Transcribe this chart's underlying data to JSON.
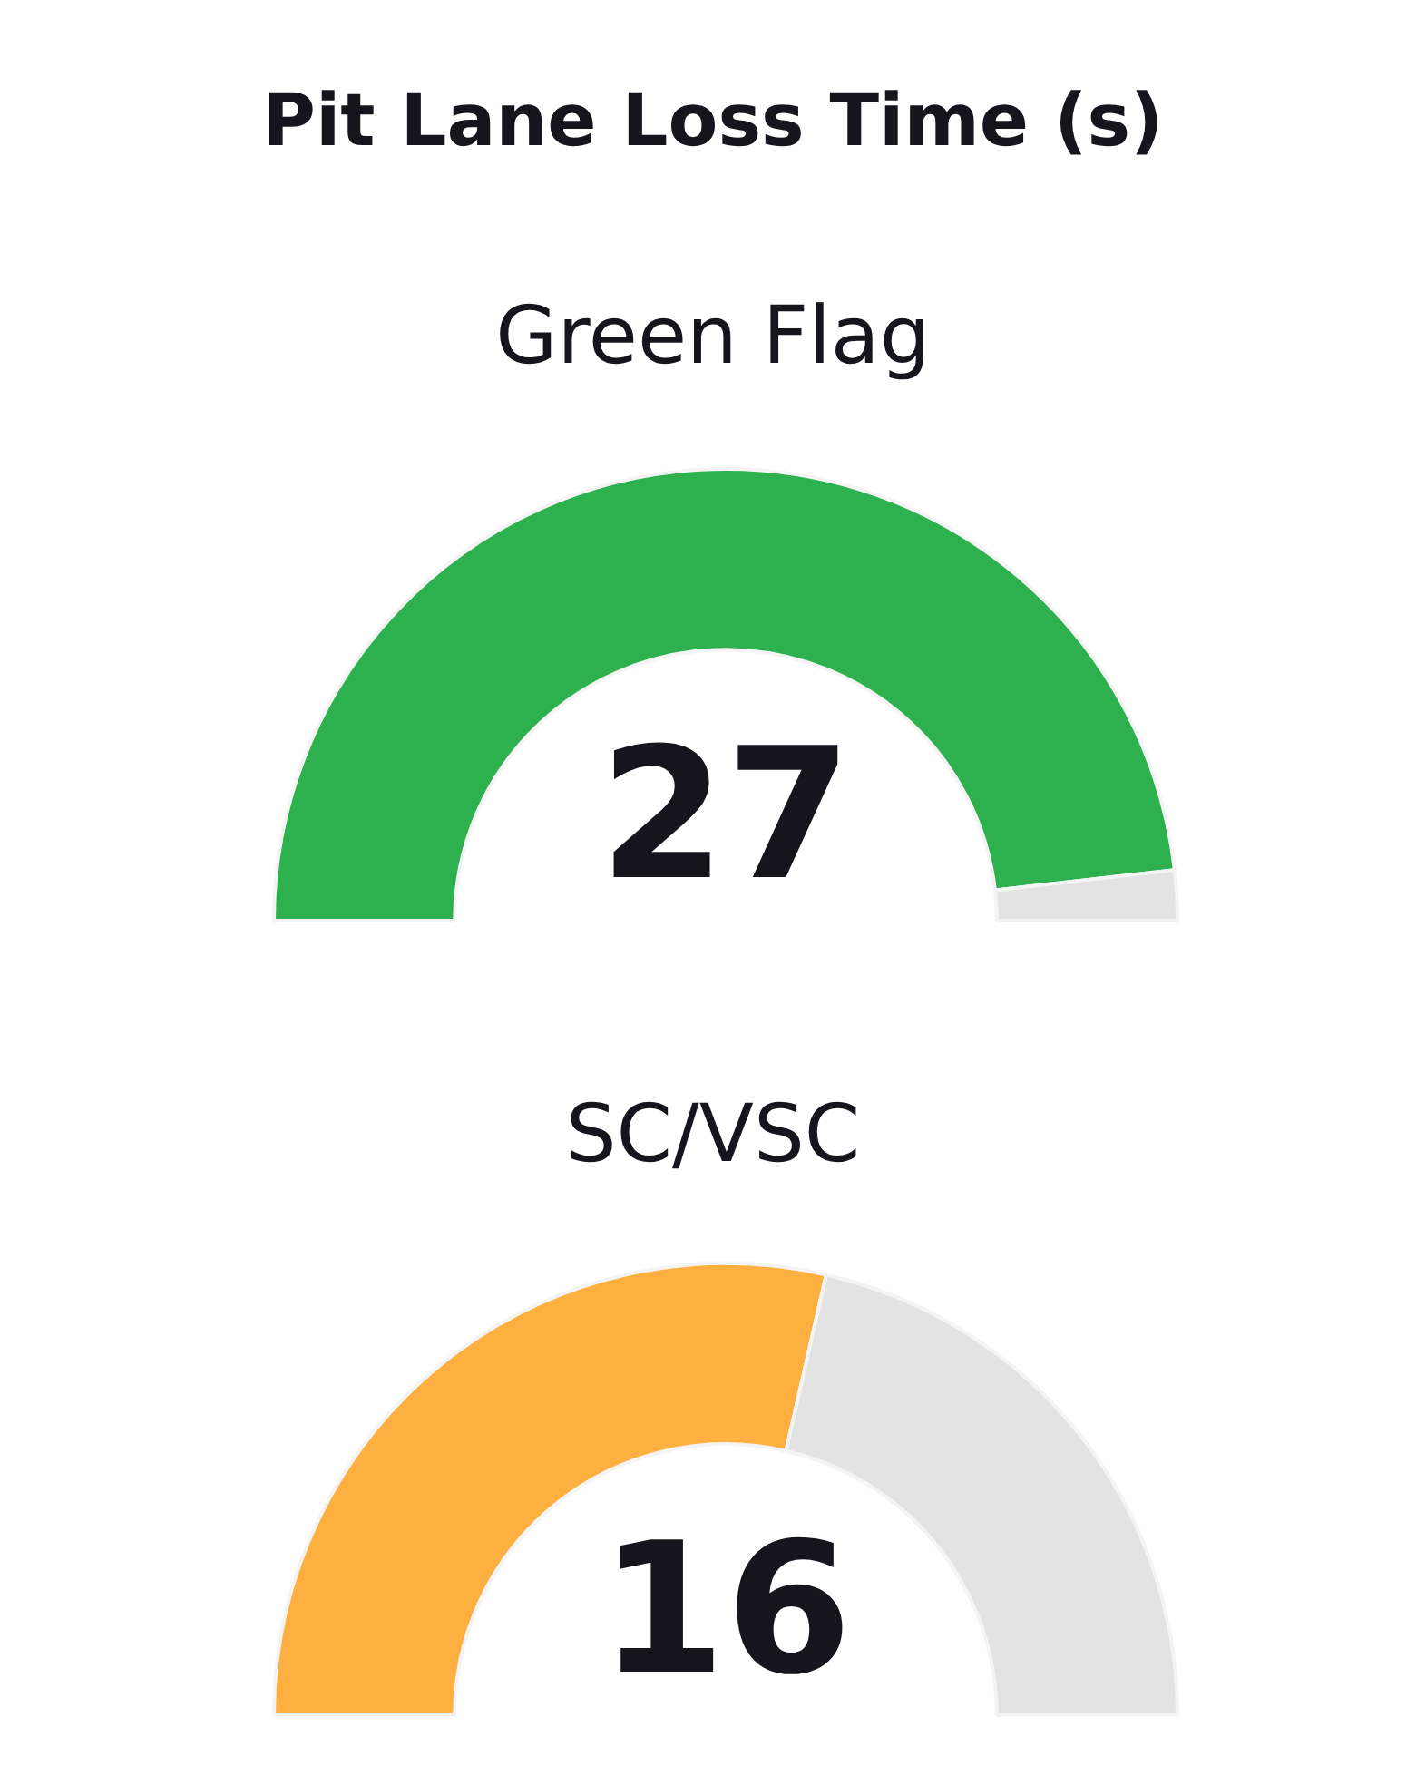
{
  "chart_data": [
    {
      "type": "donut",
      "title": "Pit Lane Loss Time (s)",
      "subtitle": "Green Flag",
      "categories": [
        null,
        null
      ],
      "values": [
        27,
        1
      ],
      "colors": [
        "#2db14e",
        "#e3e3e3"
      ],
      "value_labels": [
        "27",
        null
      ]
    },
    {
      "type": "donut",
      "title": "SC/VSC",
      "categories": [
        null,
        null
      ],
      "values": [
        16,
        12
      ],
      "colors": [
        "#fdb03f",
        "#e3e3e3"
      ],
      "value_labels": [
        "16",
        null
      ]
    }
  ]
}
